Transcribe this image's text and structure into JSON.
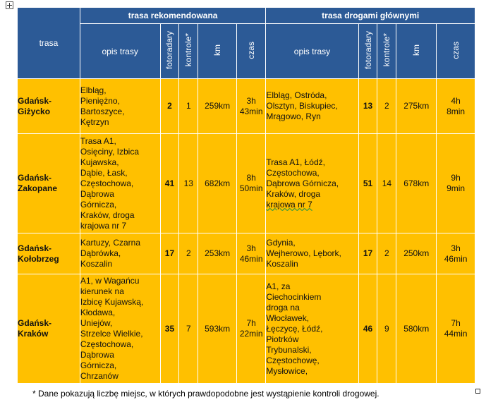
{
  "header": {
    "route_label": "trasa",
    "group_recommended": "trasa rekomendowana",
    "group_main_roads": "trasa drogami głównymi",
    "col_description": "opis trasy",
    "col_speed_cameras": "fotoradary",
    "col_checks": "kontrole*",
    "col_km": "km",
    "col_time": "czas"
  },
  "rows": [
    {
      "route": [
        "Gdańsk-",
        "Giżycko"
      ],
      "rec": {
        "desc": [
          "Elbląg,",
          "Pieniężno,",
          "Bartoszyce,",
          "Kętrzyn"
        ],
        "cameras": "2",
        "checks": "1",
        "km": "259km",
        "time": [
          "3h",
          "43min"
        ]
      },
      "main": {
        "desc": [
          "Elbląg, Ostróda,",
          "Olsztyn, Biskupiec,",
          "Mrągowo, Ryn"
        ],
        "cameras": "13",
        "checks": "2",
        "km": "275km",
        "time": [
          "4h",
          "8min"
        ]
      }
    },
    {
      "route": [
        "Gdańsk-",
        "Zakopane"
      ],
      "rec": {
        "desc": [
          "Trasa A1,",
          "Osięciny, Izbica",
          "Kujawska,",
          "Dąbie, Łask,",
          "Częstochowa,",
          "Dąbrowa",
          "Górnicza,",
          "Kraków, droga",
          "krajowa nr 7"
        ],
        "cameras": "41",
        "checks": "13",
        "km": "682km",
        "time": [
          "8h",
          "50min"
        ]
      },
      "main": {
        "desc": [
          "Trasa A1, Łódź,",
          "Częstochowa,",
          "Dąbrowa Górnicza,",
          "Kraków, droga",
          "krajowa  nr 7"
        ],
        "cameras": "51",
        "checks": "14",
        "km": "678km",
        "time": [
          "9h",
          "9min"
        ]
      }
    },
    {
      "route": [
        "Gdańsk-",
        "Kołobrzeg"
      ],
      "rec": {
        "desc": [
          "Kartuzy, Czarna",
          "Dąbrówka,",
          "Koszalin"
        ],
        "cameras": "17",
        "checks": "2",
        "km": "253km",
        "time": [
          "3h",
          "46min"
        ]
      },
      "main": {
        "desc": [
          "Gdynia,",
          "Wejherowo, Lębork,",
          "Koszalin"
        ],
        "cameras": "17",
        "checks": "2",
        "km": "250km",
        "time": [
          "3h",
          "46min"
        ]
      }
    },
    {
      "route": [
        "Gdańsk-",
        "Kraków"
      ],
      "rec": {
        "desc": [
          "A1, w Wagańcu",
          "kierunek na",
          "Izbicę Kujawską,",
          "Kłodawa,",
          "Uniejów,",
          "Strzelce Wielkie,",
          "Częstochowa,",
          "Dąbrowa",
          "Górnicza,",
          "Chrzanów"
        ],
        "cameras": "35",
        "checks": "7",
        "km": "593km",
        "time": [
          "7h",
          "22min"
        ]
      },
      "main": {
        "desc": [
          "A1, za",
          "Ciechocinkiem",
          "droga na",
          "Włocławek,",
          "Łęczycę, Łódź,",
          "Piotrków",
          "Trybunalski,",
          "Częstochowę,",
          "Mysłowice,"
        ],
        "cameras": "46",
        "checks": "9",
        "km": "580km",
        "time": [
          "7h",
          "44min"
        ]
      }
    }
  ],
  "footnote": "* Dane pokazują liczbę miejsc, w których prawdopodobne jest wystąpienie kontroli drogowej."
}
